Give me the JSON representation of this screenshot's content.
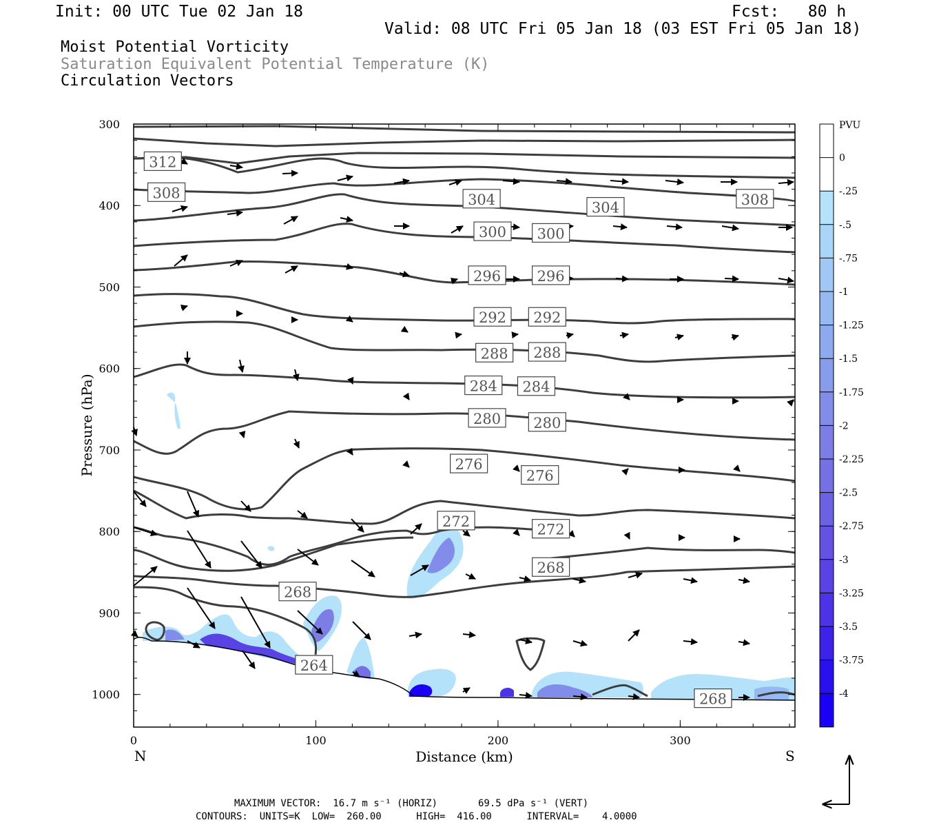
{
  "header": {
    "init": "Init: 00 UTC Tue 02 Jan 18",
    "fcst": "Fcst:   80 h",
    "valid": "Valid: 08 UTC Fri 05 Jan 18 (03 EST Fri 05 Jan 18)"
  },
  "legend": {
    "line1": "Moist Potential Vorticity",
    "line2": "Saturation Equivalent Potential Temperature (K)",
    "line3": "Circulation Vectors"
  },
  "footer": {
    "max_vector": "MAXIMUM VECTOR:  16.7 m s⁻¹ (HORIZ)       69.5 dPa s⁻¹ (VERT)",
    "contours": "CONTOURS:  UNITS=K  LOW=  260.00      HIGH=  416.00      INTERVAL=    4.0000"
  },
  "chart_data": {
    "type": "contour",
    "xlabel": "Distance (km)",
    "ylabel": "Pressure (hPa)",
    "xlim": [
      0,
      363
    ],
    "ylim": [
      1040,
      300
    ],
    "x_ticks": [
      0,
      100,
      200,
      300
    ],
    "y_ticks": [
      300,
      400,
      500,
      600,
      700,
      800,
      900,
      1000
    ],
    "x_end_labels": {
      "left": "N",
      "right": "S"
    },
    "colorbar": {
      "unit": "PVU",
      "labels": [
        "0",
        "-.25",
        "-.5",
        "-.75",
        "-1",
        "-1.25",
        "-1.5",
        "-1.75",
        "-2",
        "-2.25",
        "-2.5",
        "-2.75",
        "-3",
        "-3.25",
        "-3.5",
        "-3.75",
        "-4"
      ],
      "colors": [
        "#ffffff",
        "#ffffff",
        "#b4e2fa",
        "#a9d6f8",
        "#9fc8f5",
        "#96b9f2",
        "#8eaaef",
        "#889cec",
        "#828de9",
        "#7c7ee6",
        "#7570e4",
        "#6d61e3",
        "#6452e3",
        "#5a43e4",
        "#4d33e6",
        "#3d22ea",
        "#2b10ef",
        "#1a00f5"
      ]
    },
    "contour_labels": [
      {
        "value": "312",
        "x": 16,
        "p": 346
      },
      {
        "value": "308",
        "x": 18,
        "p": 384
      },
      {
        "value": "304",
        "x": 191,
        "p": 392
      },
      {
        "value": "304",
        "x": 259,
        "p": 402
      },
      {
        "value": "308",
        "x": 341,
        "p": 392
      },
      {
        "value": "300",
        "x": 197,
        "p": 432
      },
      {
        "value": "300",
        "x": 229,
        "p": 434
      },
      {
        "value": "296",
        "x": 194,
        "p": 486
      },
      {
        "value": "296",
        "x": 229,
        "p": 486
      },
      {
        "value": "292",
        "x": 197,
        "p": 537
      },
      {
        "value": "292",
        "x": 227,
        "p": 537
      },
      {
        "value": "288",
        "x": 198,
        "p": 581
      },
      {
        "value": "288",
        "x": 227,
        "p": 580
      },
      {
        "value": "284",
        "x": 192,
        "p": 621
      },
      {
        "value": "284",
        "x": 221,
        "p": 622
      },
      {
        "value": "280",
        "x": 194,
        "p": 661
      },
      {
        "value": "280",
        "x": 227,
        "p": 666
      },
      {
        "value": "276",
        "x": 184,
        "p": 717
      },
      {
        "value": "276",
        "x": 223,
        "p": 731
      },
      {
        "value": "272",
        "x": 177,
        "p": 787
      },
      {
        "value": "272",
        "x": 229,
        "p": 797
      },
      {
        "value": "268",
        "x": 229,
        "p": 844
      },
      {
        "value": "268",
        "x": 90,
        "p": 874
      },
      {
        "value": "264",
        "x": 99,
        "p": 964
      },
      {
        "value": "268",
        "x": 318,
        "p": 1005
      }
    ]
  }
}
